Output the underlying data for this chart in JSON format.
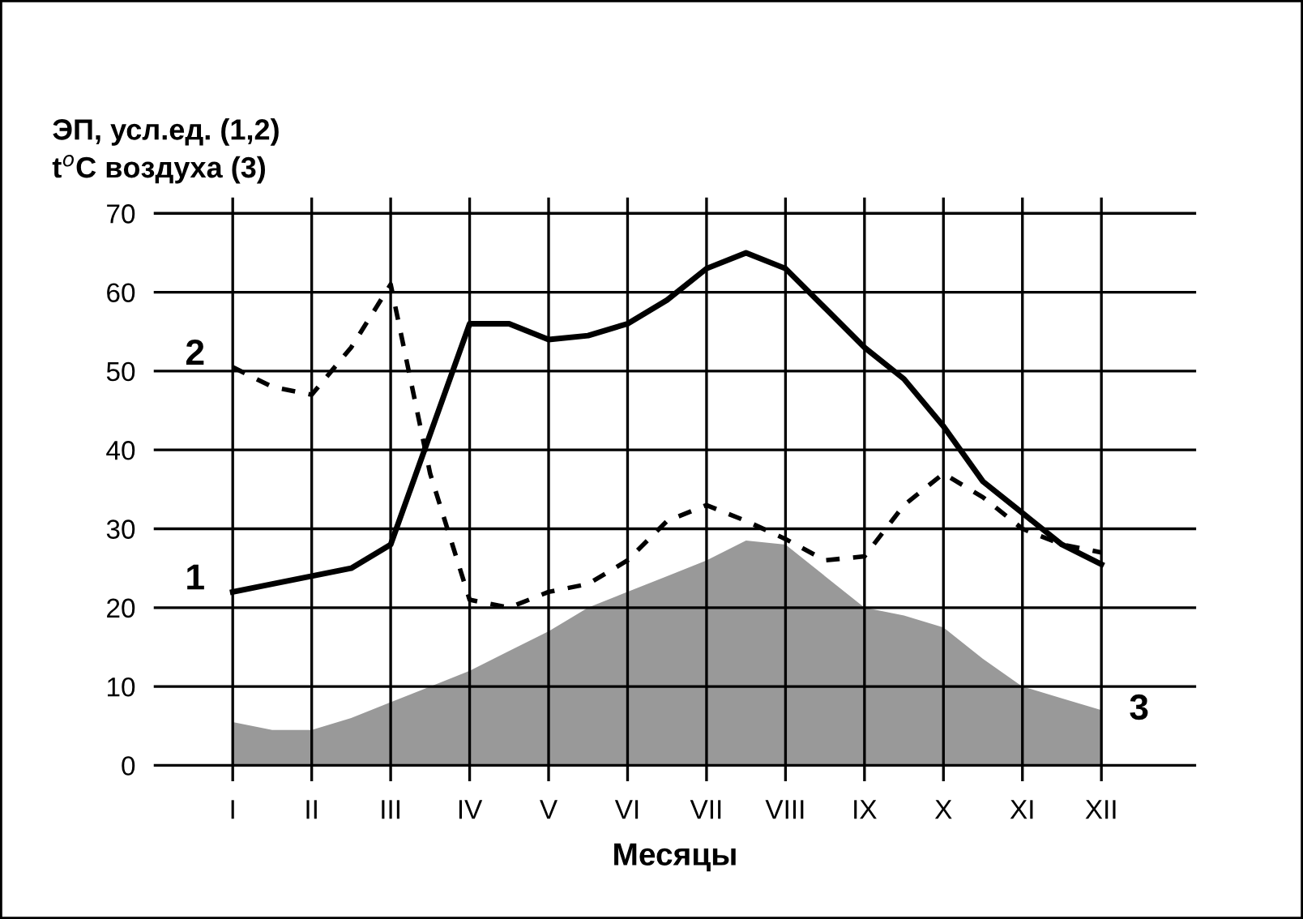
{
  "chart_data": {
    "type": "line",
    "ylabel": "ЭП, усл.ед. (1,2)\nt$^{o}$C воздуха (3)",
    "xlabel": "Месяцы",
    "categories": [
      "I",
      null,
      "II",
      null,
      "III",
      null,
      "IV",
      null,
      "V",
      null,
      "VI",
      null,
      "VII",
      null,
      "VIII",
      null,
      "IX",
      null,
      "X",
      null,
      "XI",
      null,
      "XII"
    ],
    "ylim": [
      -2,
      72
    ],
    "yticks": [
      0,
      10,
      20,
      30,
      40,
      50,
      60,
      70
    ],
    "grid": true,
    "legend": false,
    "series": [
      {
        "name": "1",
        "color": "#000000",
        "line_style": "solid",
        "values": [
          22,
          23,
          24,
          25,
          28,
          42,
          56,
          56,
          54,
          54.5,
          56,
          59,
          63,
          65,
          63,
          58,
          53,
          49,
          43,
          36,
          32,
          28,
          25.5
        ]
      },
      {
        "name": "2",
        "color": "#000000",
        "line_style": "dashed",
        "values": [
          50.5,
          48,
          47,
          53,
          61,
          37,
          21,
          20,
          22,
          23,
          26,
          31,
          33,
          31,
          28.7,
          26,
          26.5,
          33,
          37,
          34,
          30,
          28,
          27
        ]
      },
      {
        "name": "3",
        "type": "area",
        "color": "#999999",
        "values": [
          5.5,
          4.5,
          4.5,
          6,
          8,
          10,
          12,
          14.5,
          17,
          20,
          22,
          24,
          26,
          28.5,
          28,
          24,
          20,
          19,
          17.5,
          13.5,
          10,
          8.5,
          7
        ]
      }
    ]
  }
}
